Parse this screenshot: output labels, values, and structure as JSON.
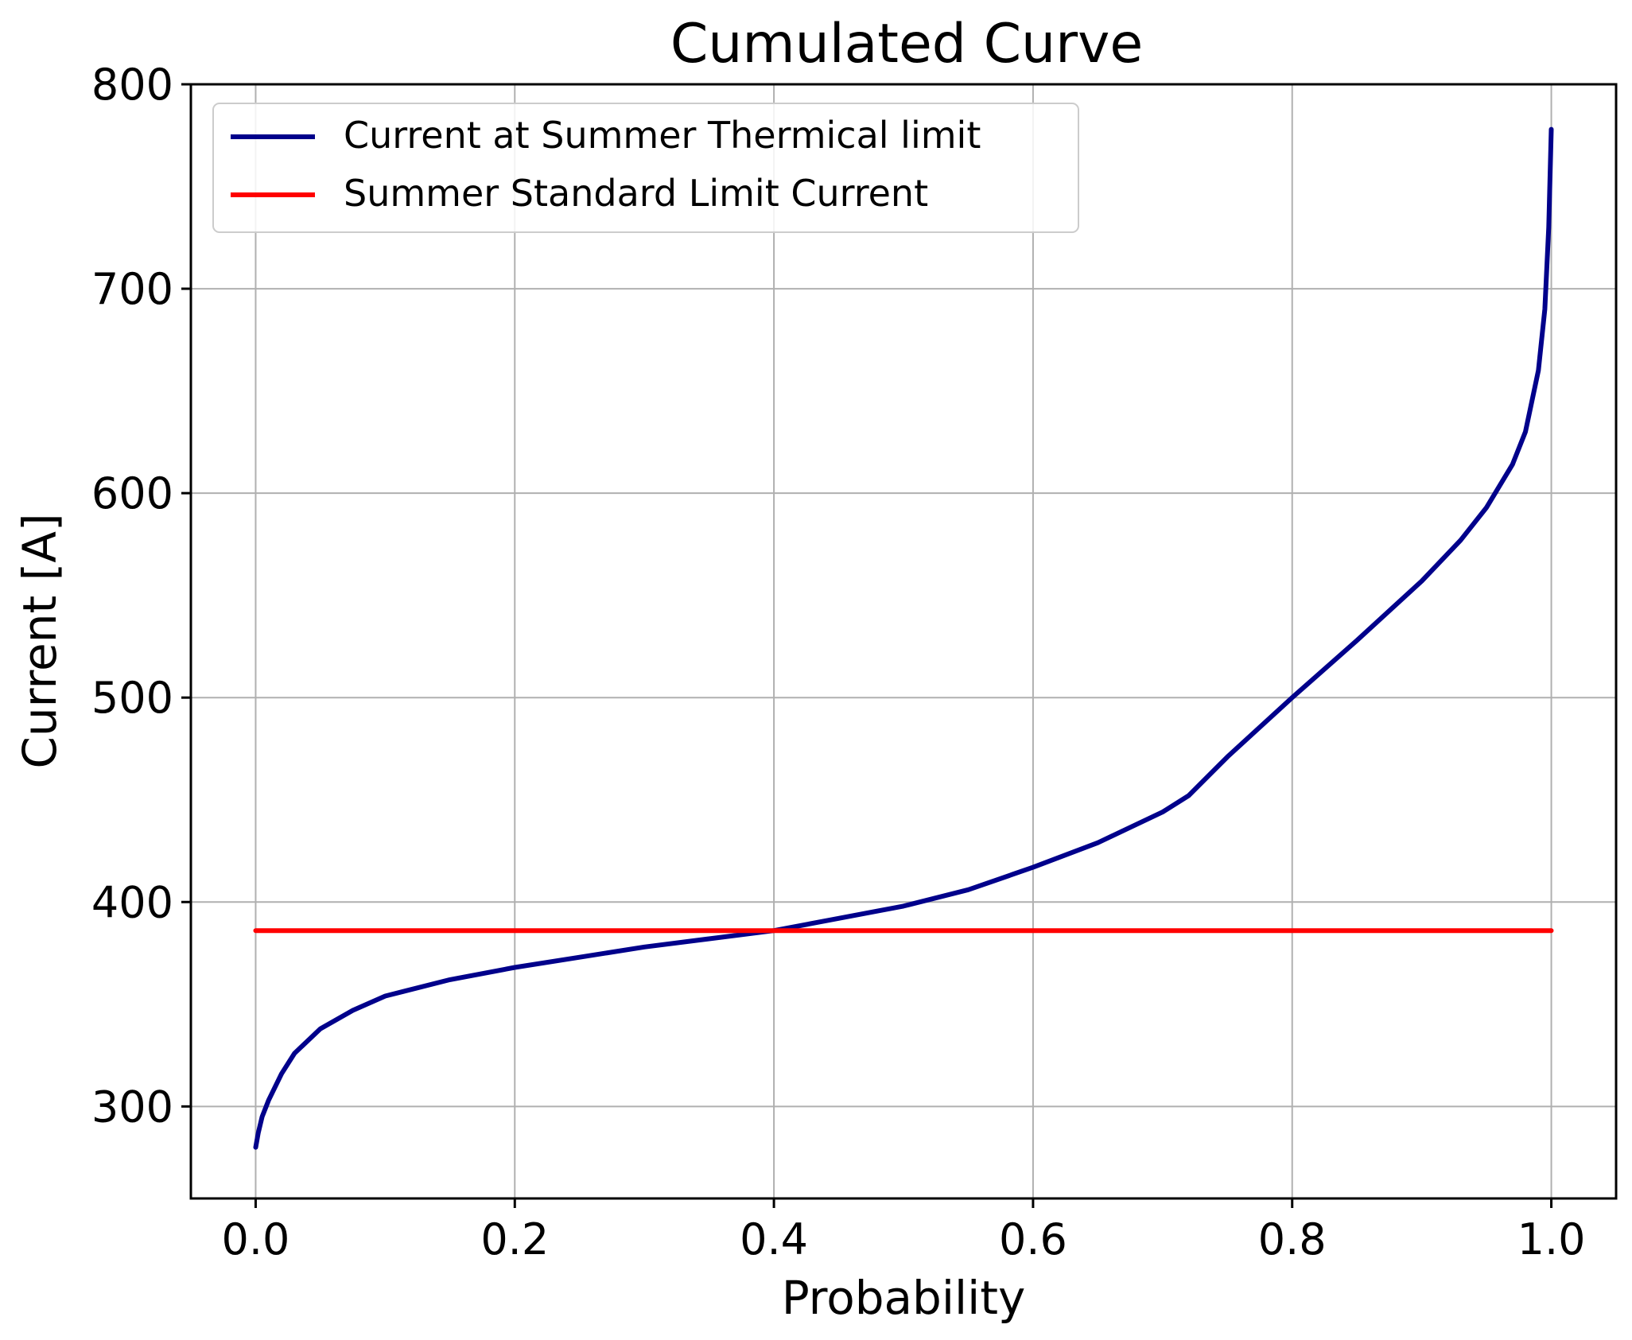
{
  "chart_data": {
    "type": "line",
    "title": "Cumulated Curve",
    "xlabel": "Probability",
    "ylabel": "Current [A]",
    "xlim": [
      -0.05,
      1.05
    ],
    "ylim": [
      255,
      800
    ],
    "x_ticks": [
      "0.0",
      "0.2",
      "0.4",
      "0.6",
      "0.8",
      "1.0"
    ],
    "y_ticks": [
      "300",
      "400",
      "500",
      "600",
      "700",
      "800"
    ],
    "grid": true,
    "legend_position": "top-left",
    "series": [
      {
        "name": "Current at Summer Thermical limit",
        "color": "#00008b",
        "x": [
          0.0,
          0.002,
          0.005,
          0.01,
          0.02,
          0.03,
          0.05,
          0.075,
          0.1,
          0.15,
          0.2,
          0.25,
          0.3,
          0.35,
          0.4,
          0.45,
          0.5,
          0.55,
          0.6,
          0.65,
          0.7,
          0.72,
          0.75,
          0.8,
          0.85,
          0.9,
          0.93,
          0.95,
          0.97,
          0.98,
          0.99,
          0.995,
          0.998,
          1.0
        ],
        "y": [
          280,
          287,
          295,
          303,
          316,
          326,
          338,
          347,
          354,
          362,
          368,
          373,
          378,
          382,
          386,
          392,
          398,
          406,
          417,
          429,
          444,
          452,
          471,
          500,
          528,
          557,
          577,
          593,
          614,
          630,
          660,
          690,
          730,
          778
        ]
      },
      {
        "name": "Summer Standard Limit Current",
        "color": "#ff0000",
        "x": [
          0.0,
          1.0
        ],
        "y": [
          386,
          386
        ]
      }
    ]
  }
}
